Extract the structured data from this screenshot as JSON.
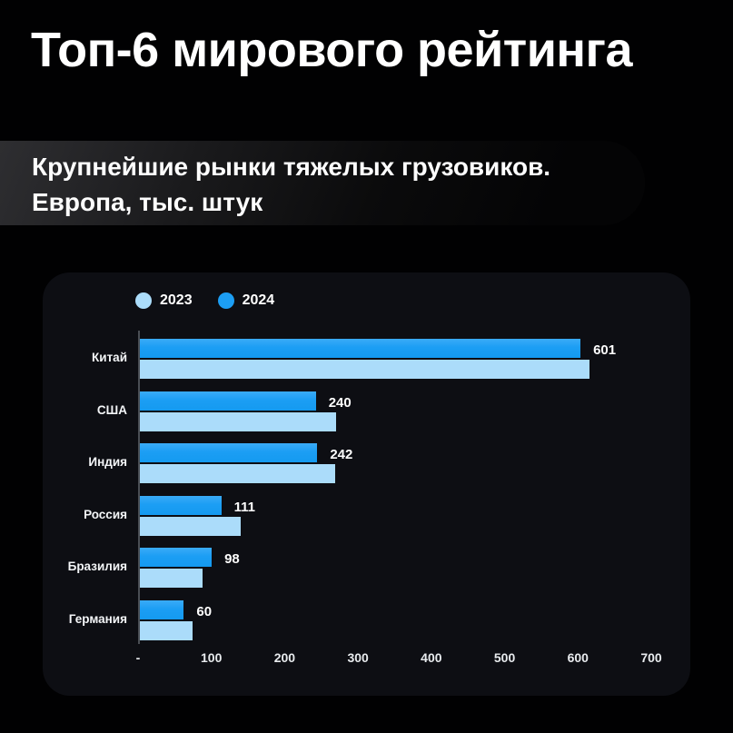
{
  "header": {
    "title": "Топ-6 мирового рейтинга",
    "subtitle_line1": "Крупнейшие рынки тяжелых грузовиков.",
    "subtitle_line2": "Европа, тыс. штук"
  },
  "colors": {
    "background": "#010102",
    "subtitle_band_start": "#2e2e31",
    "panel": "#0d0e13",
    "bar_2024": "#1c9ef4",
    "bar_2023": "#abdcfa",
    "axis_line": "#4a4e54",
    "text": "#ffffff"
  },
  "chart_data": {
    "type": "bar",
    "orientation": "horizontal",
    "title": "Топ-6 мирового рейтинга",
    "subtitle": "Крупнейшие рынки тяжелых грузовиков. Европа, тыс. штук",
    "categories": [
      "Китай",
      "США",
      "Индия",
      "Россия",
      "Бразилия",
      "Германия"
    ],
    "bar_order_top_to_bottom": [
      "2024",
      "2023"
    ],
    "series": [
      {
        "name": "2024",
        "color": "#1c9ef4",
        "values": [
          601,
          240,
          242,
          111,
          98,
          60
        ],
        "data_labels_shown": true
      },
      {
        "name": "2023",
        "color": "#abdcfa",
        "values": [
          613,
          268,
          266,
          138,
          86,
          72
        ],
        "data_labels_shown": false,
        "values_estimated_from_bars": true
      }
    ],
    "value_labels": [
      "601",
      "240",
      "242",
      "111",
      "98",
      "60"
    ],
    "legend": [
      {
        "label": "2023",
        "color": "#abdcfa"
      },
      {
        "label": "2024",
        "color": "#1c9ef4"
      }
    ],
    "legend_position": "top-left",
    "xlim": [
      0,
      700
    ],
    "x_tick_labels": [
      "-",
      "100",
      "200",
      "300",
      "400",
      "500",
      "600",
      "700"
    ],
    "x_tick_values": [
      0,
      100,
      200,
      300,
      400,
      500,
      600,
      700
    ],
    "grid": false
  }
}
